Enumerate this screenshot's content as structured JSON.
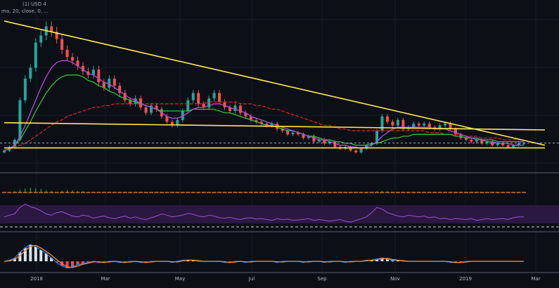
{
  "chart_data": {
    "type": "line",
    "title": "",
    "header_line1": "(1) USD 4",
    "header_line2": "ma, 20, close, 0, ...",
    "x_ticks": [
      "2018",
      "Mar",
      "May",
      "Jul",
      "Sep",
      "Nov",
      "2019",
      "Mar"
    ],
    "price_close": [
      2.4,
      2.6,
      3.0,
      5.2,
      6.4,
      7.0,
      8.4,
      8.8,
      9.3,
      9.0,
      8.6,
      8.0,
      7.6,
      7.4,
      7.1,
      6.8,
      6.6,
      6.9,
      6.2,
      5.9,
      6.4,
      6.0,
      5.6,
      5.2,
      5.0,
      5.3,
      4.8,
      4.5,
      4.9,
      4.7,
      4.3,
      4.0,
      3.8,
      4.1,
      4.6,
      5.2,
      5.6,
      5.0,
      4.8,
      5.3,
      5.6,
      5.1,
      4.8,
      4.6,
      4.9,
      4.5,
      4.3,
      4.1,
      4.0,
      3.9,
      3.8,
      3.9,
      3.6,
      3.5,
      3.3,
      3.4,
      3.3,
      3.1,
      3.2,
      2.9,
      3.0,
      2.8,
      2.9,
      2.6,
      2.5,
      2.6,
      2.4,
      2.3,
      2.5,
      2.7,
      2.8,
      3.5,
      4.3,
      4.0,
      3.8,
      4.1,
      3.6,
      3.7,
      3.9,
      3.8,
      3.9,
      3.7,
      3.6,
      3.8,
      3.9,
      3.6,
      3.3,
      3.1,
      3.0,
      2.9,
      3.0,
      2.8,
      2.9,
      2.7,
      2.8,
      2.7,
      2.6,
      2.7,
      2.8,
      2.8
    ],
    "ma_purple": [
      2.4,
      2.5,
      2.7,
      3.2,
      3.8,
      4.5,
      5.2,
      5.9,
      6.5,
      7.0,
      7.3,
      7.4,
      7.4,
      7.3,
      7.1,
      6.9,
      6.7,
      6.6,
      6.4,
      6.2,
      6.1,
      5.9,
      5.7,
      5.5,
      5.3,
      5.2,
      5.0,
      4.9,
      4.8,
      4.7,
      4.5,
      4.3,
      4.2,
      4.2,
      4.3,
      4.5,
      4.7,
      4.8,
      4.8,
      4.9,
      5.0,
      5.0,
      4.9,
      4.8,
      4.7,
      4.6,
      4.5,
      4.3,
      4.2,
      4.1,
      4.0,
      3.9,
      3.8,
      3.7,
      3.6,
      3.5,
      3.4,
      3.3,
      3.2,
      3.1,
      3.0,
      3.0,
      2.9,
      2.8,
      2.7,
      2.7,
      2.6,
      2.6,
      2.5,
      2.6,
      2.7,
      2.9,
      3.2,
      3.4,
      3.6,
      3.7,
      3.7,
      3.7,
      3.7,
      3.7,
      3.7,
      3.7,
      3.6,
      3.6,
      3.6,
      3.5,
      3.4,
      3.3,
      3.2,
      3.1,
      3.0,
      3.0,
      2.9,
      2.9,
      2.8,
      2.8,
      2.8,
      2.7,
      2.7,
      2.7
    ],
    "ma_green": [
      2.4,
      2.5,
      2.7,
      3.0,
      3.5,
      4.0,
      4.6,
      5.1,
      5.6,
      6.0,
      6.3,
      6.5,
      6.6,
      6.6,
      6.6,
      6.5,
      6.3,
      6.2,
      6.0,
      5.9,
      5.7,
      5.6,
      5.4,
      5.3,
      5.2,
      5.1,
      5.0,
      4.9,
      4.8,
      4.7,
      4.6,
      4.6,
      4.6,
      4.6,
      4.6,
      4.6,
      4.7,
      4.7,
      4.7,
      4.7,
      4.7,
      4.6,
      4.5,
      4.5,
      4.4,
      4.3,
      4.2,
      4.1,
      4.0,
      3.9,
      3.8,
      3.8,
      3.7,
      3.6,
      3.5,
      3.5,
      3.4,
      3.3,
      3.2,
      3.2,
      3.1,
      3.0,
      3.0,
      2.9,
      2.9,
      2.8,
      2.8,
      2.7,
      2.7,
      2.7,
      2.8,
      2.8,
      2.9,
      3.0,
      3.1,
      3.1,
      3.2,
      3.2,
      3.3,
      3.3,
      3.3,
      3.3,
      3.3,
      3.3,
      3.3,
      3.3,
      3.2,
      3.2,
      3.1,
      3.1,
      3.1,
      3.0,
      3.0,
      3.0,
      2.9,
      2.9,
      2.9,
      2.9,
      2.9,
      2.9
    ],
    "ma_red": [
      2.4,
      2.5,
      2.6,
      2.7,
      2.8,
      3.0,
      3.2,
      3.4,
      3.6,
      3.8,
      4.0,
      4.1,
      4.3,
      4.4,
      4.5,
      4.6,
      4.7,
      4.8,
      4.8,
      4.9,
      4.9,
      5.0,
      5.0,
      5.0,
      5.0,
      5.0,
      5.0,
      5.0,
      5.0,
      5.0,
      5.0,
      5.0,
      5.0,
      5.0,
      5.0,
      5.0,
      5.0,
      5.0,
      5.0,
      5.1,
      5.1,
      5.1,
      5.1,
      5.1,
      5.1,
      5.0,
      5.0,
      5.0,
      4.9,
      4.9,
      4.8,
      4.7,
      4.7,
      4.6,
      4.5,
      4.4,
      4.3,
      4.2,
      4.1,
      4.0,
      3.9,
      3.8,
      3.8,
      3.7,
      3.6,
      3.6,
      3.5,
      3.5,
      3.5,
      3.5,
      3.5,
      3.5,
      3.5,
      3.5,
      3.5,
      3.5,
      3.5,
      3.5,
      3.5,
      3.5,
      3.5,
      3.4,
      3.4,
      3.4,
      3.3,
      3.3,
      3.3,
      3.3,
      3.2,
      3.2,
      3.2,
      3.1,
      3.1,
      3.1,
      3.1,
      3.0,
      3.0,
      3.0,
      3.0,
      3.0
    ],
    "trendlines": [
      {
        "name": "descending resistance",
        "from": [
          0,
          9.6
        ],
        "to": [
          103,
          2.7
        ],
        "color": "#ffe94d"
      },
      {
        "name": "upper horizontal",
        "from": [
          0,
          3.95
        ],
        "to": [
          103,
          3.55
        ],
        "color": "#ffe94d"
      },
      {
        "name": "support",
        "from": [
          0,
          2.55
        ],
        "to": [
          103,
          2.55
        ],
        "color": "#ffe94d"
      }
    ],
    "dashed_level": 2.82,
    "ylim": [
      1.4,
      10.3
    ],
    "rsi": [
      48,
      52,
      55,
      70,
      78,
      72,
      68,
      62,
      55,
      52,
      58,
      60,
      55,
      50,
      48,
      52,
      50,
      45,
      48,
      50,
      46,
      44,
      47,
      50,
      45,
      48,
      44,
      42,
      46,
      50,
      55,
      52,
      48,
      50,
      52,
      56,
      54,
      50,
      48,
      52,
      50,
      46,
      45,
      47,
      44,
      42,
      45,
      46,
      43,
      44,
      42,
      40,
      44,
      42,
      43,
      40,
      41,
      42,
      44,
      40,
      42,
      40,
      38,
      40,
      42,
      38,
      36,
      40,
      44,
      48,
      58,
      70,
      66,
      58,
      54,
      50,
      48,
      52,
      50,
      48,
      50,
      46,
      48,
      44,
      45,
      42,
      44,
      43,
      42,
      44,
      40,
      42,
      44,
      42,
      43,
      44,
      42,
      46,
      48,
      48
    ],
    "macd": [
      0.0,
      0.1,
      0.3,
      0.8,
      1.2,
      1.5,
      1.3,
      1.0,
      0.7,
      0.3,
      -0.1,
      -0.4,
      -0.6,
      -0.5,
      -0.3,
      -0.2,
      -0.1,
      0.0,
      -0.1,
      -0.1,
      0.0,
      0.0,
      -0.1,
      -0.1,
      0.0,
      0.0,
      -0.1,
      -0.1,
      0.0,
      0.0,
      0.0,
      0.0,
      -0.1,
      0.0,
      0.1,
      0.1,
      0.1,
      0.0,
      0.0,
      0.0,
      0.0,
      0.0,
      -0.1,
      -0.1,
      0.0,
      0.0,
      -0.1,
      0.0,
      0.0,
      0.0,
      0.0,
      0.0,
      -0.1,
      0.0,
      0.0,
      0.0,
      0.0,
      -0.1,
      0.0,
      0.0,
      0.0,
      -0.1,
      0.0,
      0.0,
      0.0,
      -0.1,
      0.0,
      0.0,
      0.0,
      0.1,
      0.1,
      0.2,
      0.3,
      0.2,
      0.1,
      0.1,
      0.0,
      0.0,
      0.0,
      0.0,
      0.0,
      0.0,
      0.0,
      0.0,
      0.0,
      -0.1,
      -0.1,
      -0.1,
      0.0,
      0.0,
      0.0,
      0.0,
      0.0,
      0.0,
      0.0,
      0.0,
      0.0,
      0.0,
      0.0,
      0.0
    ],
    "colors": {
      "background": "#0c0f16",
      "up": "#26a69a",
      "down": "#ef5350",
      "trendline": "#ffe94d",
      "ma_purple": "#b24bd6",
      "ma_green": "#2fbf3a",
      "ma_red": "#c62828",
      "rsi": "#9c4fd8",
      "rsi_band": "#2a1840",
      "volume": "#e07a2e",
      "macd": "#2f7fd8",
      "signal": "#f0893a",
      "dashed_level": "#8fb0c4"
    }
  }
}
